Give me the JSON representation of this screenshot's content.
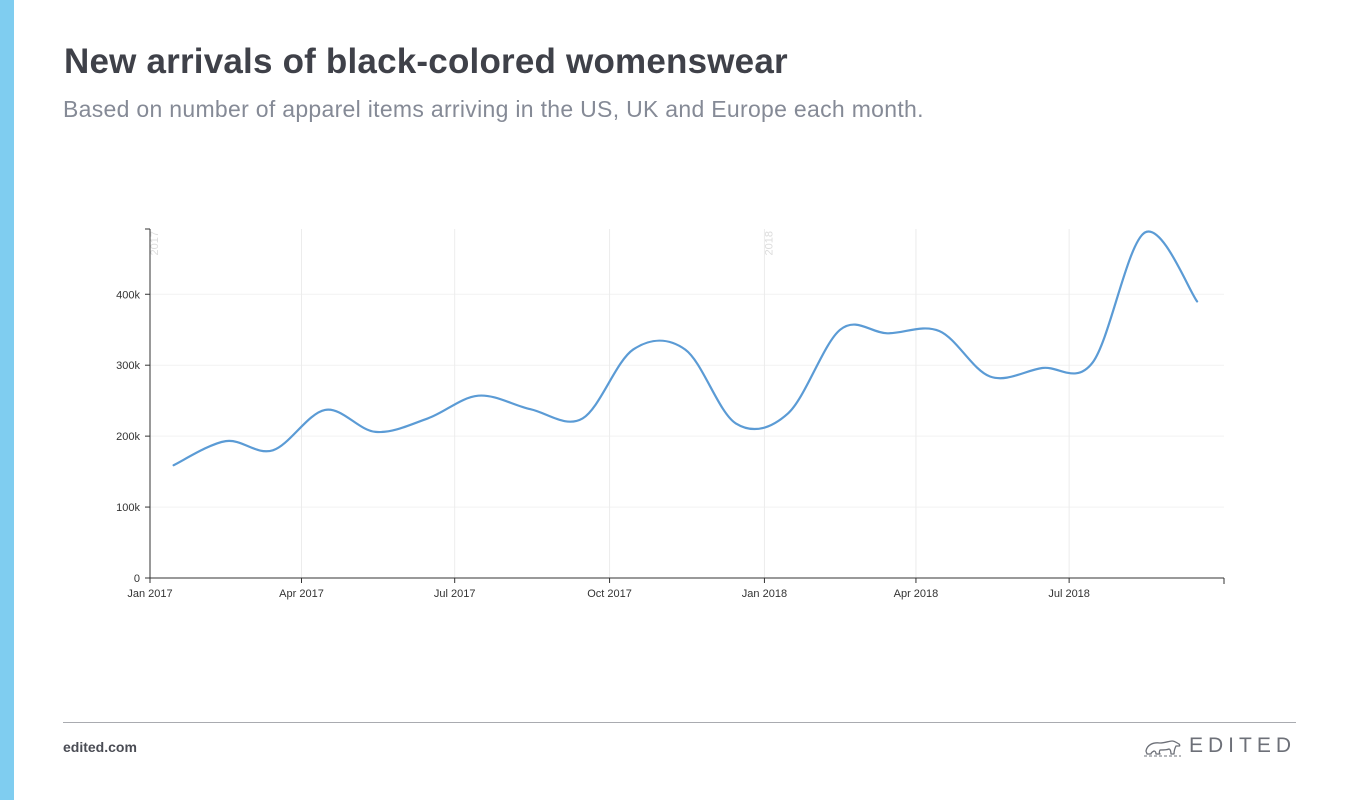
{
  "title": "New arrivals of black-colored womenswear",
  "subtitle": "Based on number of apparel items arriving in the US, UK and Europe each month.",
  "footer": {
    "url": "edited.com",
    "brand": "EDITED",
    "brand_logo_icon": "polar-bear-logo-icon"
  },
  "colors": {
    "accent": "#7fcdf0",
    "line": "#5b9bd5"
  },
  "chart_data": {
    "type": "line",
    "title": "New arrivals of black-colored womenswear",
    "subtitle": "Based on number of apparel items arriving in the US, UK and Europe each month.",
    "xlabel": "",
    "ylabel": "",
    "x_ticks": [
      {
        "date": "2017-01-01",
        "label": "Jan 2017"
      },
      {
        "date": "2017-04-01",
        "label": "Apr 2017"
      },
      {
        "date": "2017-07-01",
        "label": "Jul 2017"
      },
      {
        "date": "2017-10-01",
        "label": "Oct 2017"
      },
      {
        "date": "2018-01-01",
        "label": "Jan 2018"
      },
      {
        "date": "2018-04-01",
        "label": "Apr 2018"
      },
      {
        "date": "2018-07-01",
        "label": "Jul 2018"
      }
    ],
    "year_markers": [
      {
        "date": "2017-01-01",
        "label": "2017"
      },
      {
        "date": "2018-01-01",
        "label": "2018"
      }
    ],
    "y_ticks": [
      {
        "value": 0,
        "label": "0"
      },
      {
        "value": 100000,
        "label": "100k"
      },
      {
        "value": 200000,
        "label": "200k"
      },
      {
        "value": 300000,
        "label": "300k"
      },
      {
        "value": 400000,
        "label": "400k"
      }
    ],
    "xlim": [
      "2017-01-01",
      "2018-10-01"
    ],
    "ylim": [
      0,
      492000
    ],
    "grid": true,
    "series": [
      {
        "color": "#5b9bd5",
        "points": [
          {
            "x": "2017-01-15",
            "y": 159000
          },
          {
            "x": "2017-02-15",
            "y": 193000
          },
          {
            "x": "2017-03-15",
            "y": 180000
          },
          {
            "x": "2017-04-15",
            "y": 237000
          },
          {
            "x": "2017-05-15",
            "y": 206000
          },
          {
            "x": "2017-06-15",
            "y": 225000
          },
          {
            "x": "2017-07-15",
            "y": 257000
          },
          {
            "x": "2017-08-15",
            "y": 238000
          },
          {
            "x": "2017-09-15",
            "y": 225000
          },
          {
            "x": "2017-10-15",
            "y": 322000
          },
          {
            "x": "2017-11-15",
            "y": 322000
          },
          {
            "x": "2017-12-15",
            "y": 218000
          },
          {
            "x": "2018-01-15",
            "y": 232000
          },
          {
            "x": "2018-02-15",
            "y": 350000
          },
          {
            "x": "2018-03-15",
            "y": 345000
          },
          {
            "x": "2018-04-15",
            "y": 348000
          },
          {
            "x": "2018-05-15",
            "y": 284000
          },
          {
            "x": "2018-06-15",
            "y": 296000
          },
          {
            "x": "2018-07-15",
            "y": 304000
          },
          {
            "x": "2018-08-15",
            "y": 487000
          },
          {
            "x": "2018-09-15",
            "y": 390000
          }
        ]
      }
    ]
  }
}
